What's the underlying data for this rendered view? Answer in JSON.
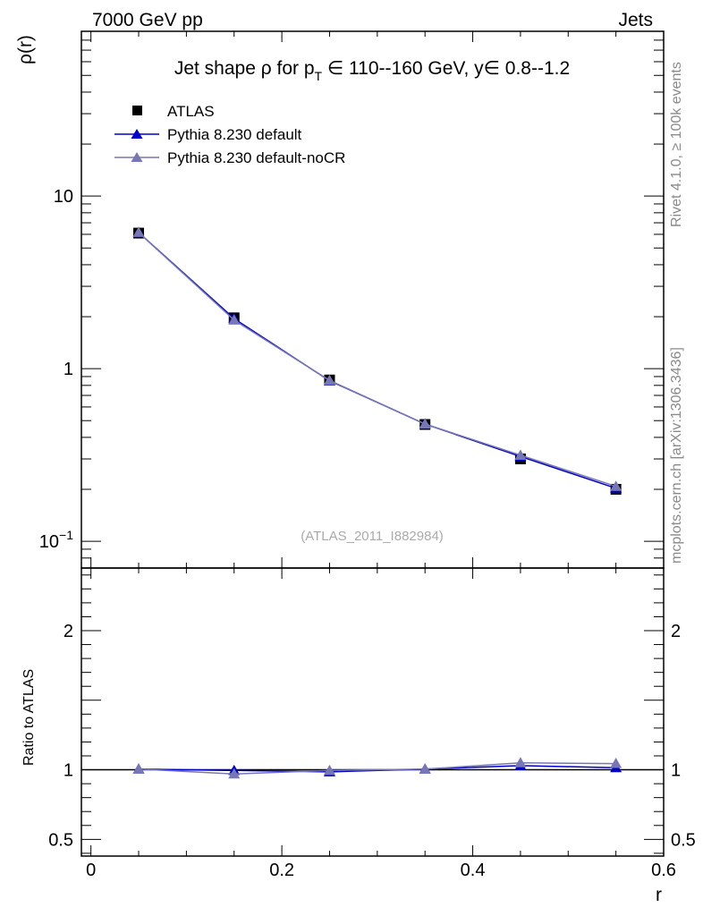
{
  "header": {
    "energy_label": "7000 GeV pp",
    "category_label": "Jets"
  },
  "side_labels": {
    "rivet": "Rivet 4.1.0, ≥ 100k events",
    "source": "mcplots.cern.ch [arXiv:1306.3436]"
  },
  "colors": {
    "atlas": "#000000",
    "pythia_default": "#0000cc",
    "pythia_nocr": "#7777b5",
    "reference_line": "#000000"
  },
  "chart_data": {
    "type": "line",
    "title": {
      "prefix": "Jet shape ρ for p",
      "sub": "T",
      "suffix": " ∈ 110--160 GeV, y∈ 0.8--1.2"
    },
    "watermark": "(ATLAS_2011_I882984)",
    "x": [
      0.05,
      0.15,
      0.25,
      0.35,
      0.45,
      0.55
    ],
    "xlabel": "r",
    "xlim": [
      -0.01,
      0.6
    ],
    "x_ticks": [
      "0",
      "0.2",
      "0.4",
      "0.6"
    ],
    "top_panel": {
      "ylabel": "ρ(r)",
      "yscale": "log",
      "ylim": [
        0.07,
        90
      ],
      "y_ticks": [
        {
          "label": "10",
          "value": 10
        },
        {
          "label": "1",
          "value": 1
        },
        {
          "label": "10",
          "exp": "−1",
          "value": 0.1
        }
      ],
      "series": [
        {
          "name": "ATLAS",
          "marker": "square",
          "values": [
            6.1,
            1.97,
            0.86,
            0.475,
            0.3,
            0.2
          ]
        },
        {
          "name": "Pythia 8.230 default",
          "marker": "triangle",
          "values": [
            6.15,
            1.95,
            0.85,
            0.478,
            0.31,
            0.203
          ]
        },
        {
          "name": "Pythia 8.230 default-noCR",
          "marker": "triangle",
          "values": [
            6.15,
            1.91,
            0.855,
            0.478,
            0.315,
            0.208
          ]
        }
      ]
    },
    "ratio_panel": {
      "ylabel": "Ratio to ATLAS",
      "ylim": [
        0.38,
        2.45
      ],
      "y_ticks": [
        {
          "label": "2",
          "value": 2
        },
        {
          "label": "1",
          "value": 1
        },
        {
          "label": "0.5",
          "value": 0.5
        }
      ],
      "series": [
        {
          "name": "Pythia 8.230 default",
          "values": [
            1.005,
            0.995,
            0.985,
            1.005,
            1.03,
            1.015
          ]
        },
        {
          "name": "Pythia 8.230 default-noCR",
          "values": [
            1.005,
            0.97,
            0.995,
            1.005,
            1.05,
            1.045
          ]
        }
      ]
    }
  }
}
